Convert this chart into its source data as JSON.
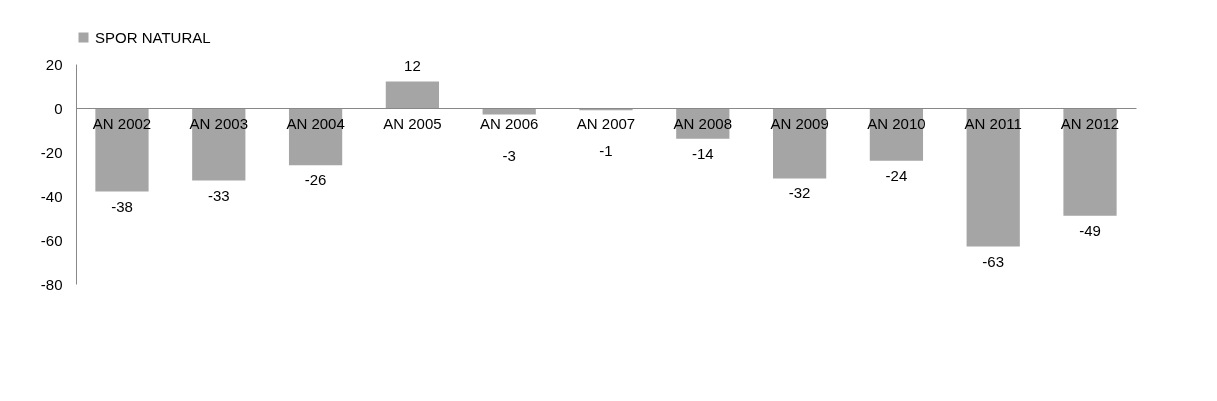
{
  "chart_data": {
    "type": "bar",
    "categories": [
      "AN 2002",
      "AN 2003",
      "AN 2004",
      "AN 2005",
      "AN 2006",
      "AN 2007",
      "AN 2008",
      "AN 2009",
      "AN 2010",
      "AN 2011",
      "AN 2012"
    ],
    "series": [
      {
        "name": "SPOR NATURAL",
        "color": "#a5a5a5",
        "values": [
          -38,
          -33,
          -26,
          12,
          -3,
          -1,
          -14,
          -32,
          -24,
          -63,
          -49
        ]
      }
    ],
    "ylim": [
      -80,
      20
    ],
    "yticks": [
      -80,
      -60,
      -40,
      -20,
      0,
      20
    ],
    "grid": false,
    "legend": "top",
    "data_labels": true
  }
}
